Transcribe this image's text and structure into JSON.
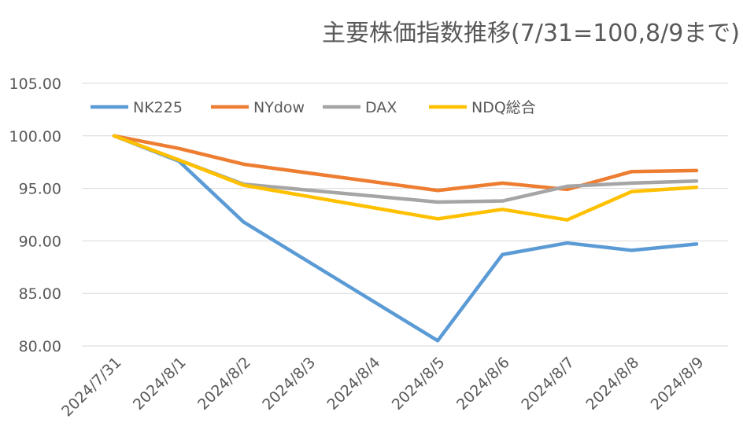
{
  "chart_data": {
    "type": "line",
    "title": "主要株価指数推移(7/31=100,8/9まで)",
    "xlabel": "",
    "ylabel": "",
    "ylim": [
      80,
      105
    ],
    "yticks": [
      "80.00",
      "85.00",
      "90.00",
      "95.00",
      "100.00",
      "105.00"
    ],
    "ytick_values": [
      80,
      85,
      90,
      95,
      100,
      105
    ],
    "categories": [
      "2024/7/31",
      "2024/8/1",
      "2024/8/2",
      "2024/8/3",
      "2024/8/4",
      "2024/8/5",
      "2024/8/6",
      "2024/8/7",
      "2024/8/8",
      "2024/8/9"
    ],
    "grid": true,
    "legend_position": "top",
    "series": [
      {
        "name": "NK225",
        "color": "#5B9BD5",
        "values": [
          100,
          97.6,
          91.8,
          null,
          null,
          80.5,
          88.7,
          89.8,
          89.1,
          89.7
        ]
      },
      {
        "name": "NYdow",
        "color": "#ED7D31",
        "values": [
          100,
          98.8,
          97.3,
          null,
          null,
          94.8,
          95.5,
          94.9,
          96.6,
          96.7
        ]
      },
      {
        "name": "DAX",
        "color": "#A5A5A5",
        "values": [
          100,
          97.7,
          95.4,
          null,
          null,
          93.7,
          93.8,
          95.2,
          95.5,
          95.7
        ]
      },
      {
        "name": "NDQ総合",
        "color": "#FFC000",
        "values": [
          100,
          97.7,
          95.3,
          null,
          null,
          92.1,
          93.0,
          92.0,
          94.7,
          95.1
        ]
      }
    ]
  }
}
